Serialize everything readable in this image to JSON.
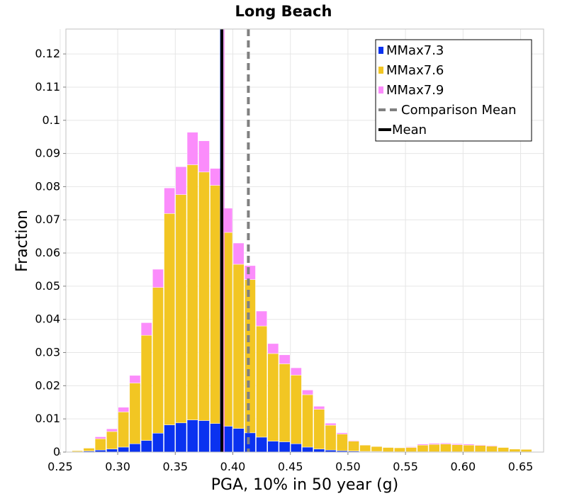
{
  "chart_data": {
    "type": "bar",
    "title": "Long Beach",
    "xlabel": "PGA, 10% in 50 year (g)",
    "ylabel": "Fraction",
    "xlim": [
      0.255,
      0.67
    ],
    "ylim": [
      0,
      0.1275
    ],
    "bin_width": 0.01,
    "x_ticks": [
      "0.25",
      "0.30",
      "0.35",
      "0.40",
      "0.45",
      "0.50",
      "0.55",
      "0.60",
      "0.65"
    ],
    "y_ticks": [
      "0",
      "0.01",
      "0.02",
      "0.03",
      "0.04",
      "0.05",
      "0.06",
      "0.07",
      "0.08",
      "0.09",
      "0.1",
      "0.11",
      "0.12"
    ],
    "grid": true,
    "stacked": true,
    "legend_position": "top-right",
    "x": [
      0.265,
      0.275,
      0.285,
      0.295,
      0.305,
      0.315,
      0.325,
      0.335,
      0.345,
      0.355,
      0.365,
      0.375,
      0.385,
      0.395,
      0.405,
      0.415,
      0.425,
      0.435,
      0.445,
      0.455,
      0.465,
      0.475,
      0.485,
      0.495,
      0.505,
      0.515,
      0.525,
      0.535,
      0.545,
      0.555,
      0.565,
      0.575,
      0.585,
      0.595,
      0.605,
      0.615,
      0.625,
      0.635,
      0.645,
      0.655,
      0.665
    ],
    "series": [
      {
        "name": "MMax7.3",
        "color": "#0a32f0",
        "values": [
          0.0001,
          0.0003,
          0.0006,
          0.0009,
          0.0015,
          0.0025,
          0.0035,
          0.0057,
          0.0082,
          0.0088,
          0.0097,
          0.0095,
          0.0086,
          0.0078,
          0.0071,
          0.0058,
          0.0045,
          0.0033,
          0.0031,
          0.0025,
          0.0015,
          0.0009,
          0.0006,
          0.0004,
          0.0003,
          0.0002,
          0.0002,
          0.0001,
          0.0001,
          0.0001,
          0.0001,
          0.0001,
          0.0001,
          0.0001,
          0.0001,
          0.0001,
          0.0001,
          0.0001,
          0.0001,
          0.0001,
          0.0
        ]
      },
      {
        "name": "MMax7.6",
        "color": "#f2c623",
        "values": [
          0.0003,
          0.0009,
          0.0034,
          0.0053,
          0.0106,
          0.0183,
          0.0317,
          0.0439,
          0.0637,
          0.0688,
          0.0769,
          0.0749,
          0.0718,
          0.0584,
          0.0495,
          0.0462,
          0.0335,
          0.0264,
          0.0235,
          0.0207,
          0.0158,
          0.012,
          0.0075,
          0.005,
          0.003,
          0.0019,
          0.0015,
          0.0013,
          0.0012,
          0.0013,
          0.002,
          0.0022,
          0.0023,
          0.0021,
          0.002,
          0.0019,
          0.0017,
          0.0013,
          0.0008,
          0.0007,
          0.0001
        ]
      },
      {
        "name": "MMax7.9",
        "color": "#fb8cfb",
        "values": [
          0.0,
          0.0001,
          0.0006,
          0.0008,
          0.0014,
          0.0023,
          0.0038,
          0.0055,
          0.0077,
          0.0084,
          0.0098,
          0.0094,
          0.0051,
          0.0073,
          0.0064,
          0.0042,
          0.0045,
          0.003,
          0.0027,
          0.0022,
          0.0014,
          0.0009,
          0.0006,
          0.0004,
          0.0002,
          0.0001,
          0.0001,
          0.0001,
          0.0001,
          0.0002,
          0.0003,
          0.0003,
          0.0003,
          0.0003,
          0.0003,
          0.0002,
          0.0002,
          0.0001,
          0.0001,
          0.0001,
          0.0
        ]
      }
    ],
    "mean": 0.3905,
    "comparison_mean": 0.4135,
    "mean_label": "Mean",
    "comparison_mean_label": "Comparison Mean"
  }
}
